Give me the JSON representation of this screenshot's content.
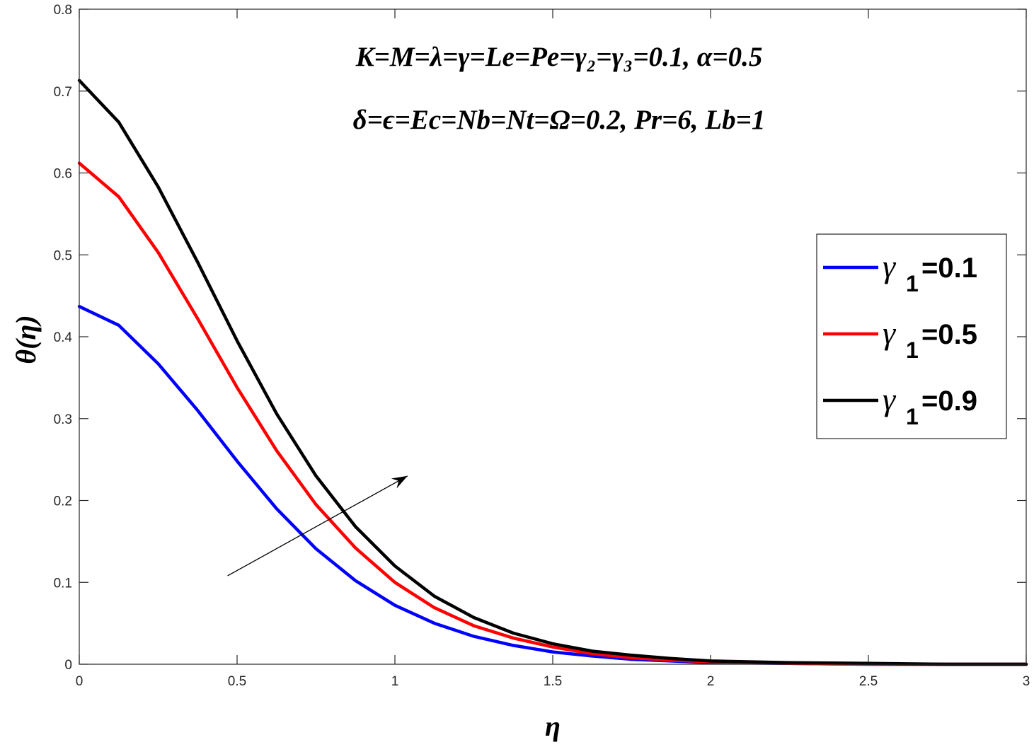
{
  "chart_data": {
    "type": "line",
    "title": "",
    "xlabel": "η",
    "ylabel": "θ(η)",
    "xlim": [
      0,
      3
    ],
    "ylim": [
      0,
      0.8
    ],
    "xticks": [
      0,
      0.5,
      1,
      1.5,
      2,
      2.5,
      3
    ],
    "xtick_labels": [
      "0",
      "0.5",
      "1",
      "1.5",
      "2",
      "2.5",
      "3"
    ],
    "yticks": [
      0,
      0.1,
      0.2,
      0.3,
      0.4,
      0.5,
      0.6,
      0.7,
      0.8
    ],
    "ytick_labels": [
      "0",
      "0.1",
      "0.2",
      "0.3",
      "0.4",
      "0.5",
      "0.6",
      "0.7",
      "0.8"
    ],
    "grid": false,
    "legend_position": "right",
    "annotation": {
      "line1": "K=M=λ=γ=Le=Pe=γ₂=γ₃=0.1, α=0.5",
      "line2": "δ=ϵ=Ec=Nb=Nt=Ω=0.2, Pr=6, Lb=1"
    },
    "arrow": {
      "from": [
        0.47,
        0.108
      ],
      "to": [
        1.04,
        0.23
      ],
      "meaning": "increasing γ1"
    },
    "series": [
      {
        "name": "γ1=0.1",
        "legend_symbol": "γ",
        "legend_subscript": "1",
        "legend_value": "=0.1",
        "color": "#0000ff",
        "x": [
          0,
          0.125,
          0.25,
          0.375,
          0.5,
          0.625,
          0.75,
          0.875,
          1.0,
          1.125,
          1.25,
          1.375,
          1.5,
          1.625,
          1.75,
          1.875,
          2.0,
          2.25,
          2.5,
          2.75,
          3.0
        ],
        "y": [
          0.437,
          0.414,
          0.367,
          0.31,
          0.248,
          0.19,
          0.141,
          0.102,
          0.072,
          0.05,
          0.034,
          0.023,
          0.015,
          0.01,
          0.006,
          0.004,
          0.002,
          0.001,
          0.0,
          0.0,
          0.0
        ]
      },
      {
        "name": "γ1=0.5",
        "legend_symbol": "γ",
        "legend_subscript": "1",
        "legend_value": "=0.5",
        "color": "#ff0000",
        "x": [
          0,
          0.125,
          0.25,
          0.375,
          0.5,
          0.625,
          0.75,
          0.875,
          1.0,
          1.125,
          1.25,
          1.375,
          1.5,
          1.625,
          1.75,
          1.875,
          2.0,
          2.25,
          2.5,
          2.75,
          3.0
        ],
        "y": [
          0.612,
          0.571,
          0.503,
          0.422,
          0.338,
          0.261,
          0.195,
          0.142,
          0.1,
          0.069,
          0.047,
          0.032,
          0.021,
          0.013,
          0.008,
          0.005,
          0.003,
          0.001,
          0.0,
          0.0,
          0.0
        ]
      },
      {
        "name": "γ1=0.9",
        "legend_symbol": "γ",
        "legend_subscript": "1",
        "legend_value": "=0.9",
        "color": "#000000",
        "x": [
          0,
          0.125,
          0.25,
          0.375,
          0.5,
          0.625,
          0.75,
          0.875,
          1.0,
          1.125,
          1.25,
          1.375,
          1.5,
          1.625,
          1.75,
          1.875,
          2.0,
          2.25,
          2.5,
          2.75,
          3.0
        ],
        "y": [
          0.713,
          0.662,
          0.583,
          0.491,
          0.395,
          0.306,
          0.23,
          0.168,
          0.12,
          0.083,
          0.057,
          0.038,
          0.025,
          0.016,
          0.011,
          0.007,
          0.004,
          0.002,
          0.001,
          0.0,
          0.0
        ]
      }
    ]
  }
}
